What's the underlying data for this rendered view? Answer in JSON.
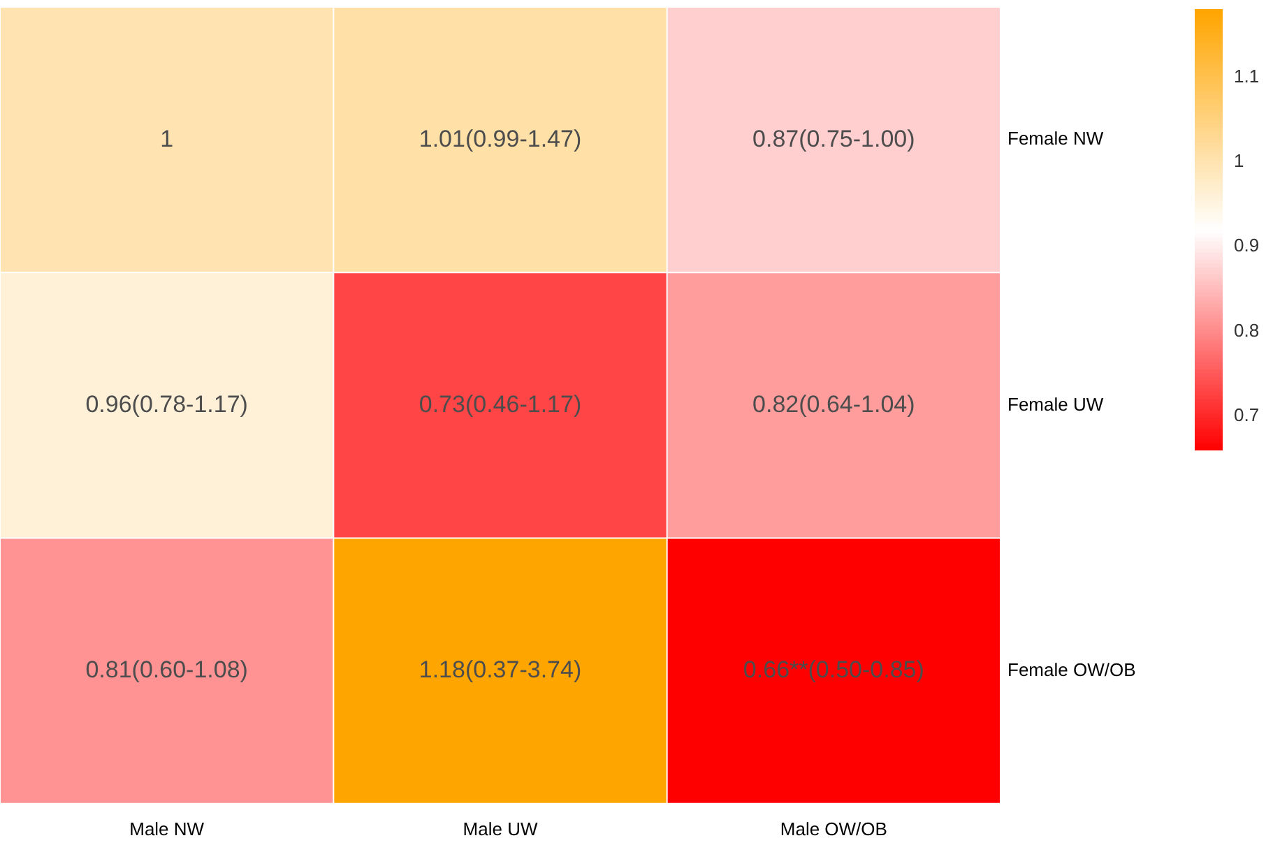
{
  "chart_data": {
    "type": "heatmap",
    "categories": [
      "Male NW",
      "Male UW",
      "Male OW/OB"
    ],
    "y_categories": [
      "Female NW",
      "Female UW",
      "Female OW/OB"
    ],
    "cells": [
      [
        1,
        1.01,
        0.87
      ],
      [
        0.96,
        0.73,
        0.82
      ],
      [
        0.81,
        1.18,
        0.66
      ]
    ],
    "cell_labels": [
      [
        "1",
        "1.01(0.99-1.47)",
        "0.87(0.75-1.00)"
      ],
      [
        "0.96(0.78-1.17)",
        "0.73(0.46-1.17)",
        "0.82(0.64-1.04)"
      ],
      [
        "0.81(0.60-1.08)",
        "1.18(0.37-3.74)",
        "0.66**(0.50-0.85)"
      ]
    ],
    "clim": [
      0.66,
      1.18
    ],
    "cticks": [
      0.7,
      0.8,
      0.9,
      1,
      1.1
    ]
  }
}
